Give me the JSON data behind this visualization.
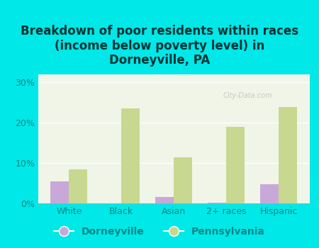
{
  "title": "Breakdown of poor residents within races\n(income below poverty level) in\nDorneyville, PA",
  "categories": [
    "White",
    "Black",
    "Asian",
    "2+ races",
    "Hispanic"
  ],
  "dorneyville_values": [
    5.5,
    0,
    1.5,
    0.2,
    4.8
  ],
  "pennsylvania_values": [
    8.5,
    23.5,
    11.5,
    19.0,
    24.0
  ],
  "dorneyville_color": "#c8a8d8",
  "pennsylvania_color": "#c8d890",
  "bg_outer": "#00e8e8",
  "bg_plot": "#f0f5e8",
  "ylim": [
    0,
    32
  ],
  "yticks": [
    0,
    10,
    20,
    30
  ],
  "ytick_labels": [
    "0%",
    "10%",
    "20%",
    "30%"
  ],
  "bar_width": 0.35,
  "legend_labels": [
    "Dorneyville",
    "Pennsylvania"
  ],
  "title_fontsize": 12,
  "tick_fontsize": 9,
  "tick_color": "#008888",
  "title_color": "#003333"
}
